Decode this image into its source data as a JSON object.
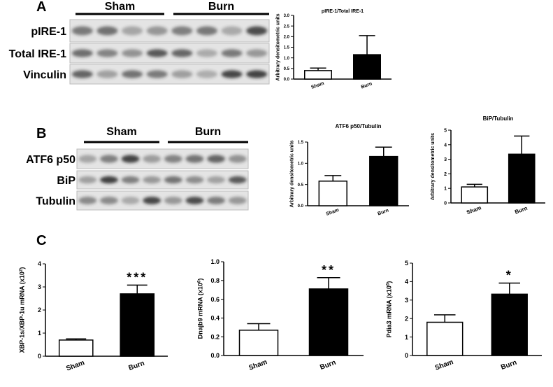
{
  "figure": {
    "panels": [
      "A",
      "B",
      "C"
    ],
    "blot_a": {
      "groups": [
        "Sham",
        "Burn"
      ],
      "rows": [
        "pIRE-1",
        "Total IRE-1",
        "Vinculin"
      ]
    },
    "blot_b": {
      "groups": [
        "Sham",
        "Burn"
      ],
      "rows": [
        "ATF6 p50",
        "BiP",
        "Tubulin"
      ]
    }
  },
  "chart_data": [
    {
      "type": "bar",
      "title": "pIRE-1/Total IRE-1",
      "ylabel_parts": [
        "Arbitrary densitometric units"
      ],
      "categories": [
        "Sham",
        "Burn"
      ],
      "values": [
        0.4,
        1.15
      ],
      "errors": [
        0.12,
        0.9
      ],
      "colors": [
        "#ffffff",
        "#000000"
      ],
      "ylim": [
        0,
        3
      ],
      "yticks": [
        {
          "value": 0,
          "label": "0.0"
        },
        {
          "value": 0.5,
          "label": "0.5"
        },
        {
          "value": 1,
          "label": "1.0"
        },
        {
          "value": 1.5,
          "label": "1.5"
        },
        {
          "value": 2,
          "label": "2.0"
        },
        {
          "value": 2.5,
          "label": "2.5"
        },
        {
          "value": 3,
          "label": "3.0"
        }
      ]
    },
    {
      "type": "bar",
      "title": "ATF6 p50/Tubulin",
      "ylabel_parts": [
        "Arbitrary densitometric units"
      ],
      "categories": [
        "Sham",
        "Burn"
      ],
      "values": [
        0.58,
        1.16
      ],
      "errors": [
        0.13,
        0.22
      ],
      "colors": [
        "#ffffff",
        "#000000"
      ],
      "ylim": [
        0,
        1.5
      ],
      "yticks": [
        {
          "value": 0,
          "label": "0.0"
        },
        {
          "value": 0.5,
          "label": "0.5"
        },
        {
          "value": 1,
          "label": "1.0"
        },
        1.5
      ]
    },
    {
      "type": "bar",
      "title": "BiP/Tubulin",
      "ylabel_parts": [
        "Arbitrary densitometric units"
      ],
      "categories": [
        "Sham",
        "Burn"
      ],
      "values": [
        1.1,
        3.35
      ],
      "errors": [
        0.18,
        1.25
      ],
      "colors": [
        "#ffffff",
        "#000000"
      ],
      "ylim": [
        0,
        5
      ],
      "yticks": [
        0,
        1,
        2,
        3,
        4,
        5
      ]
    },
    {
      "type": "bar",
      "ylabel_parts": [
        "XBP-1s/XBP-1u mRNA (x10",
        "2",
        ")"
      ],
      "annotation": "***",
      "categories": [
        "Sham",
        "Burn"
      ],
      "values": [
        0.7,
        2.7
      ],
      "errors": [
        0.05,
        0.38
      ],
      "colors": [
        "#ffffff",
        "#000000"
      ],
      "ylim": [
        0,
        4
      ],
      "yticks": [
        0,
        1,
        2,
        3,
        4
      ]
    },
    {
      "type": "bar",
      "ylabel_parts": [
        "Dnajb9 mRNA (x10",
        "6",
        ")"
      ],
      "annotation": "**",
      "categories": [
        "Sham",
        "Burn"
      ],
      "values": [
        0.27,
        0.71
      ],
      "errors": [
        0.07,
        0.12
      ],
      "colors": [
        "#ffffff",
        "#000000"
      ],
      "ylim": [
        0,
        1
      ],
      "yticks": [
        {
          "value": 0,
          "label": "0.0"
        },
        0.2,
        0.4,
        0.6,
        0.8,
        {
          "value": 1,
          "label": "1.0"
        }
      ]
    },
    {
      "type": "bar",
      "ylabel_parts": [
        "Pdia3 mRNA (x10",
        "6",
        ")"
      ],
      "annotation": "*",
      "categories": [
        "Sham",
        "Burn"
      ],
      "values": [
        1.8,
        3.32
      ],
      "errors": [
        0.4,
        0.6
      ],
      "colors": [
        "#ffffff",
        "#000000"
      ],
      "ylim": [
        0,
        5
      ],
      "yticks": [
        0,
        1,
        2,
        3,
        4,
        5
      ]
    }
  ]
}
